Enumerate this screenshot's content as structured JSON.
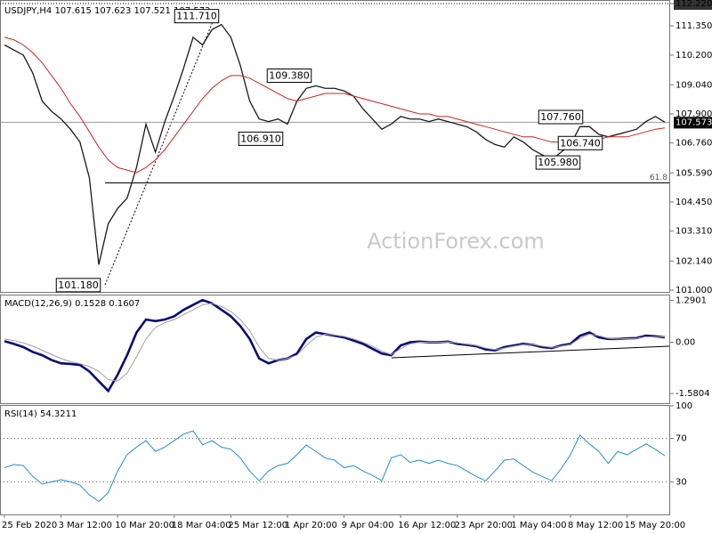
{
  "chart_data": [
    {
      "type": "line",
      "title": "USDJPY,H4  107.615 107.623 107.521 107.573",
      "series": [
        {
          "color": "#1a1a1a",
          "width": 1.3,
          "values": [
            110.6,
            110.4,
            110.2,
            109.5,
            108.4,
            108.0,
            107.7,
            107.3,
            106.8,
            105.4,
            102.0,
            103.6,
            104.2,
            104.6,
            105.8,
            107.5,
            106.4,
            107.6,
            108.6,
            109.7,
            110.9,
            110.6,
            111.2,
            111.4,
            110.9,
            109.8,
            108.4,
            107.7,
            107.6,
            107.7,
            107.5,
            108.4,
            108.9,
            109.0,
            108.9,
            108.9,
            108.8,
            108.6,
            108.1,
            107.7,
            107.3,
            107.5,
            107.8,
            107.7,
            107.7,
            107.6,
            107.7,
            107.6,
            107.5,
            107.4,
            107.2,
            106.9,
            106.7,
            106.6,
            107.0,
            106.8,
            106.5,
            106.3,
            106.1,
            106.4,
            106.7,
            107.4,
            107.4,
            107.1,
            107.0,
            107.1,
            107.2,
            107.3,
            107.6,
            107.8,
            107.573
          ]
        },
        {
          "color": "#d42020",
          "width": 1,
          "values": [
            110.9,
            110.8,
            110.6,
            110.3,
            109.9,
            109.4,
            108.9,
            108.3,
            107.8,
            107.2,
            106.6,
            106.1,
            105.8,
            105.7,
            105.6,
            105.8,
            106.1,
            106.5,
            107.0,
            107.5,
            108.0,
            108.5,
            108.9,
            109.2,
            109.4,
            109.4,
            109.3,
            109.1,
            108.9,
            108.7,
            108.5,
            108.4,
            108.5,
            108.6,
            108.7,
            108.7,
            108.7,
            108.6,
            108.5,
            108.4,
            108.3,
            108.2,
            108.1,
            108.0,
            107.9,
            107.9,
            107.8,
            107.8,
            107.7,
            107.6,
            107.5,
            107.4,
            107.3,
            107.2,
            107.1,
            107.0,
            107.0,
            106.9,
            106.8,
            106.8,
            106.8,
            106.8,
            106.9,
            106.9,
            107.0,
            107.0,
            107.0,
            107.1,
            107.2,
            107.3,
            107.35
          ]
        }
      ],
      "ylim": [
        101.0,
        112.22
      ],
      "yticks": [
        {
          "value": 101.0,
          "label": "101.000"
        },
        {
          "value": 102.14,
          "label": "102.140"
        },
        {
          "value": 103.31,
          "label": "103.310"
        },
        {
          "value": 104.45,
          "label": "104.450"
        },
        {
          "value": 105.59,
          "label": "105.590"
        },
        {
          "value": 106.76,
          "label": "106.760"
        },
        {
          "value": 107.9,
          "label": "107.900"
        },
        {
          "value": 109.04,
          "label": "109.040"
        },
        {
          "value": 110.2,
          "label": "110.200"
        },
        {
          "value": 111.35,
          "label": "111.350"
        },
        {
          "value": 112.22,
          "label": "112.220"
        }
      ],
      "current_price": {
        "value": 107.573,
        "label": "107.573"
      },
      "fib_line": {
        "price": 105.2,
        "label": "61.8"
      },
      "annotations": [
        {
          "value": 111.71,
          "label": "111.710"
        },
        {
          "value": 109.38,
          "label": "109.380"
        },
        {
          "value": 106.91,
          "label": "106.910"
        },
        {
          "value": 101.18,
          "label": "101.180"
        },
        {
          "value": 107.76,
          "label": "107.760"
        },
        {
          "value": 106.74,
          "label": "106.740"
        },
        {
          "value": 105.98,
          "label": "105.980"
        }
      ],
      "watermark": "ActionForex.com",
      "grid": false
    },
    {
      "type": "line",
      "title": "MACD(12,26,9) 0.1528 0.1607",
      "series": [
        {
          "color": "#0a0a7a",
          "width": 2.6,
          "values": [
            0.03,
            -0.05,
            -0.15,
            -0.3,
            -0.4,
            -0.55,
            -0.65,
            -0.67,
            -0.7,
            -0.9,
            -1.2,
            -1.5,
            -1.0,
            -0.4,
            0.3,
            0.7,
            0.65,
            0.7,
            0.8,
            1.0,
            1.15,
            1.3,
            1.2,
            1.0,
            0.8,
            0.5,
            0.1,
            -0.5,
            -0.65,
            -0.55,
            -0.5,
            -0.35,
            0.1,
            0.3,
            0.25,
            0.2,
            0.15,
            0.05,
            -0.05,
            -0.2,
            -0.35,
            -0.4,
            -0.1,
            0.0,
            0.02,
            0.0,
            0.0,
            0.02,
            -0.05,
            -0.08,
            -0.12,
            -0.22,
            -0.25,
            -0.15,
            -0.1,
            -0.05,
            -0.08,
            -0.15,
            -0.18,
            -0.1,
            -0.05,
            0.2,
            0.3,
            0.15,
            0.1,
            0.1,
            0.12,
            0.13,
            0.2,
            0.18,
            0.15
          ]
        },
        {
          "color": "#a0a0a0",
          "width": 1,
          "values": [
            0.1,
            0.05,
            -0.02,
            -0.12,
            -0.25,
            -0.38,
            -0.5,
            -0.6,
            -0.66,
            -0.75,
            -0.9,
            -1.15,
            -1.2,
            -0.95,
            -0.45,
            0.1,
            0.45,
            0.6,
            0.7,
            0.85,
            1.0,
            1.15,
            1.2,
            1.1,
            0.95,
            0.7,
            0.35,
            -0.15,
            -0.5,
            -0.55,
            -0.5,
            -0.4,
            -0.1,
            0.15,
            0.25,
            0.22,
            0.18,
            0.1,
            0.0,
            -0.12,
            -0.28,
            -0.38,
            -0.2,
            -0.05,
            0.0,
            0.0,
            0.0,
            0.01,
            -0.02,
            -0.06,
            -0.1,
            -0.18,
            -0.23,
            -0.18,
            -0.12,
            -0.07,
            -0.07,
            -0.12,
            -0.16,
            -0.12,
            -0.07,
            0.12,
            0.25,
            0.2,
            0.12,
            0.1,
            0.11,
            0.12,
            0.17,
            0.16,
            0.16
          ]
        }
      ],
      "ylim": [
        -1.85,
        1.44
      ],
      "yticks": [
        -1.5804,
        {
          "value": 0,
          "label": "0.00"
        },
        1.2901
      ],
      "grid": false
    },
    {
      "type": "line",
      "title": "RSI(14) 54.3211",
      "series": [
        {
          "color": "#1e8fd0",
          "width": 1,
          "values": [
            43,
            46,
            45,
            35,
            28,
            30,
            32,
            30,
            27,
            18,
            12,
            20,
            40,
            55,
            62,
            68,
            58,
            62,
            68,
            74,
            77,
            64,
            68,
            62,
            60,
            52,
            40,
            31,
            40,
            45,
            47,
            55,
            64,
            58,
            52,
            50,
            43,
            45,
            40,
            36,
            31,
            52,
            55,
            48,
            50,
            47,
            50,
            47,
            45,
            40,
            35,
            31,
            40,
            50,
            51,
            45,
            39,
            35,
            31,
            42,
            55,
            73,
            65,
            58,
            47,
            58,
            55,
            60,
            65,
            60,
            54
          ]
        }
      ],
      "ylim": [
        0,
        100
      ],
      "yticks": [
        30,
        70,
        100
      ],
      "grid": true,
      "categories": [
        "25 Feb 2020",
        null,
        null,
        null,
        null,
        null,
        "3 Mar 12:00",
        null,
        null,
        null,
        null,
        null,
        "10 Mar 20:00",
        null,
        null,
        null,
        null,
        null,
        "18 Mar 04:00",
        null,
        null,
        null,
        null,
        null,
        "25 Mar 12:00",
        null,
        null,
        null,
        null,
        null,
        "1 Apr 20:00",
        null,
        null,
        null,
        null,
        null,
        "9 Apr 04:00",
        null,
        null,
        null,
        null,
        null,
        "16 Apr 12:00",
        null,
        null,
        null,
        null,
        null,
        "23 Apr 20:00",
        null,
        null,
        null,
        null,
        null,
        "1 May 04:00",
        null,
        null,
        null,
        null,
        null,
        "8 May 12:00",
        null,
        null,
        null,
        null,
        null,
        "15 May 20:00",
        null,
        null,
        null,
        null
      ]
    }
  ]
}
